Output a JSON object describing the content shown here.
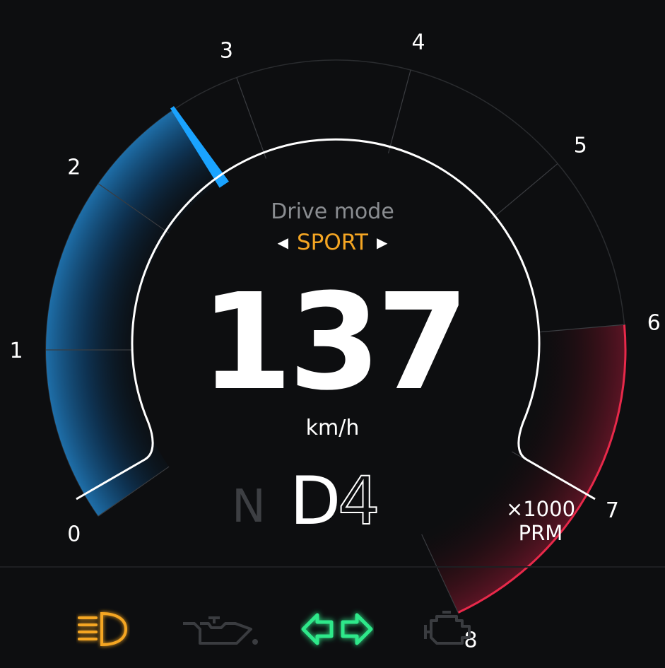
{
  "tachometer": {
    "ticks": [
      "0",
      "1",
      "2",
      "3",
      "4",
      "5",
      "6",
      "7",
      "8"
    ],
    "needle_rpm": 2.6,
    "redline_start": 6,
    "unit_multiplier": "×1000",
    "unit_label": "PRM",
    "colors": {
      "accent": "#1aa3ff",
      "redline": "#e8294a",
      "track": "#2a2c2f"
    }
  },
  "drive_mode": {
    "label": "Drive mode",
    "value": "SPORT",
    "left_arrow": "◀",
    "right_arrow": "▶",
    "color": "#f5a623"
  },
  "speed": {
    "value": "137",
    "unit": "km/h"
  },
  "gear": {
    "neutral": "N",
    "drive": "D",
    "number": "4"
  },
  "indicators": [
    {
      "name": "headlight-icon",
      "active": true,
      "color": "#f5a623"
    },
    {
      "name": "oil-pressure-icon",
      "active": false,
      "color": "#3a3c40"
    },
    {
      "name": "turn-signal-icon",
      "active": true,
      "color": "#2ee88a"
    },
    {
      "name": "check-engine-icon",
      "active": false,
      "color": "#3a3c40"
    }
  ]
}
